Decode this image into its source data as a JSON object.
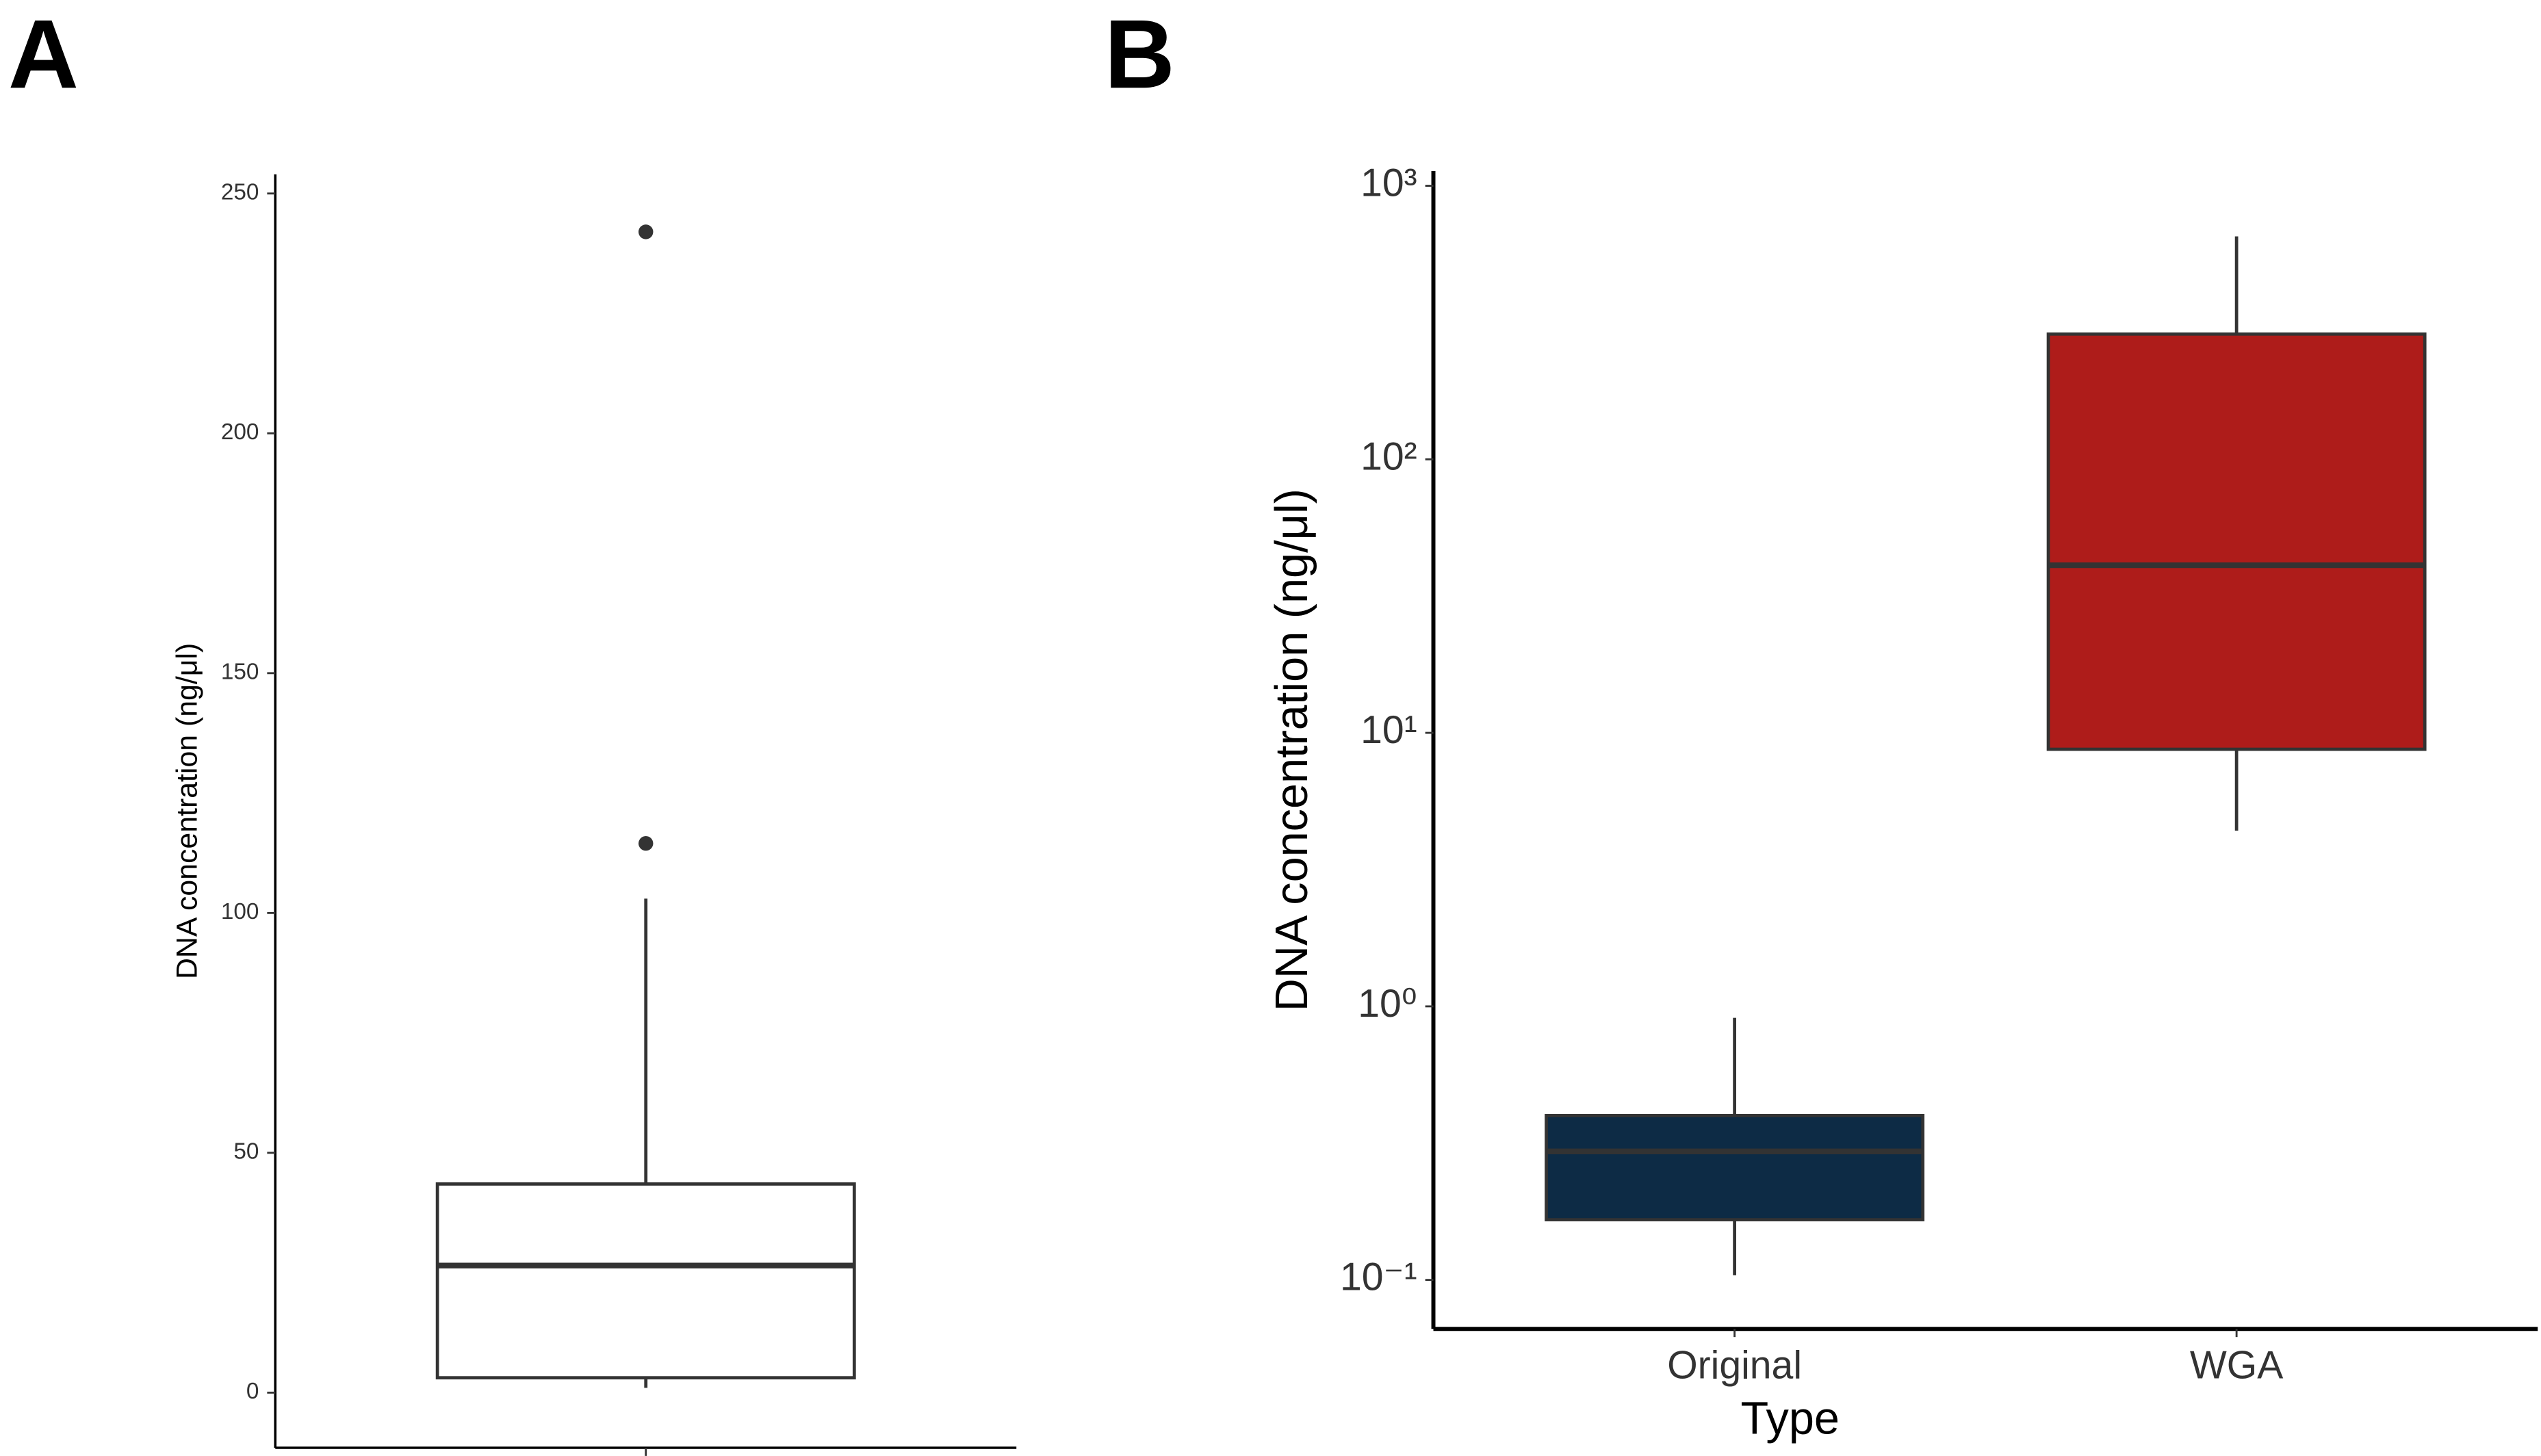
{
  "chart_data": [
    {
      "type": "box",
      "panel_label": "A",
      "y_label": "DNA concentration (ng/μl)",
      "categories": [
        null
      ],
      "color": "#ffffff",
      "boxes": [
        {
          "whislo": 1.0,
          "q1": 3.1,
          "med": 26.5,
          "q3": 43.5,
          "whishi": 103,
          "outliers": [
            114.5,
            242
          ]
        }
      ],
      "ylim": [
        -11.5,
        254
      ],
      "yticks": [
        0,
        50,
        100,
        150,
        200,
        250
      ],
      "log_scale": false
    },
    {
      "type": "box",
      "panel_label": "B",
      "y_label": "DNA concentration (ng/μl)",
      "x_label": "Type",
      "categories": [
        "Original",
        "WGA"
      ],
      "colors": [
        "#0d2b45",
        "#ae1c1a"
      ],
      "boxes": [
        {
          "whislo": 0.104,
          "q1": 0.166,
          "med": 0.295,
          "q3": 0.399,
          "whishi": 0.908,
          "outliers": []
        },
        {
          "whislo": 4.39,
          "q1": 8.71,
          "med": 41.0,
          "q3": 287,
          "whishi": 653,
          "outliers": []
        }
      ],
      "ylim": [
        0.0662,
        1132
      ],
      "yticks": [
        {
          "value": 0.1,
          "label": "10⁻¹"
        },
        {
          "value": 1,
          "label": "10⁰"
        },
        {
          "value": 10,
          "label": "10¹"
        },
        {
          "value": 100,
          "label": "10²"
        },
        {
          "value": 1000,
          "label": "10³"
        }
      ],
      "log_scale": true
    }
  ]
}
